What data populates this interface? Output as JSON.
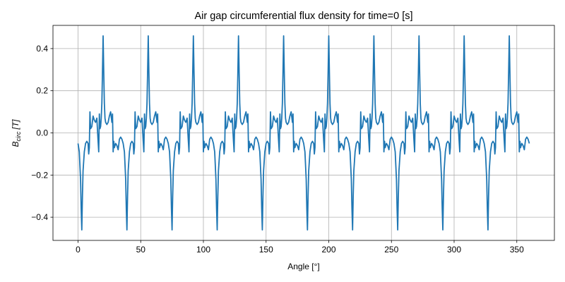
{
  "chart_data": {
    "type": "line",
    "title": "Air gap circumferential flux density for time=0 [s]",
    "xlabel": "Angle [°]",
    "ylabel": {
      "base": "B",
      "subscript": "circ",
      "unit": "[T]"
    },
    "xlim": [
      -20,
      380
    ],
    "ylim": [
      -0.51,
      0.51
    ],
    "xticks": [
      0,
      50,
      100,
      150,
      200,
      250,
      300,
      350
    ],
    "yticks": [
      -0.4,
      -0.2,
      0.0,
      0.2,
      0.4
    ],
    "xtick_labels": [
      "0",
      "50",
      "100",
      "150",
      "200",
      "250",
      "300",
      "350"
    ],
    "ytick_labels": [
      "−0.4",
      "−0.2",
      "0.0",
      "0.2",
      "0.4"
    ],
    "grid": true,
    "line_color": "#1f77b4",
    "period_deg": 36,
    "series": [
      {
        "x": [
          0,
          1,
          2,
          2.5,
          3,
          3.5,
          4,
          5,
          6,
          7,
          8,
          8.5,
          9,
          9.5,
          10,
          11,
          12,
          13,
          14,
          15,
          16,
          16.5,
          17,
          17.5,
          18,
          18.5,
          19,
          19.5,
          20,
          20.5,
          21,
          21.5,
          22,
          23,
          24,
          25,
          26,
          27,
          27.5,
          28,
          28.5,
          29,
          30,
          31,
          32,
          33,
          34,
          35,
          36
        ],
        "y": [
          -0.05,
          -0.09,
          -0.22,
          -0.36,
          -0.46,
          -0.3,
          -0.18,
          -0.09,
          -0.05,
          -0.04,
          -0.05,
          -0.1,
          -0.07,
          0.1,
          0.02,
          0.03,
          0.08,
          0.06,
          0.05,
          0.07,
          -0.04,
          -0.09,
          0.09,
          0.02,
          0.03,
          0.07,
          0.14,
          0.29,
          0.46,
          0.29,
          0.14,
          0.07,
          0.05,
          0.04,
          0.05,
          0.08,
          0.1,
          0.05,
          0.09,
          -0.09,
          -0.04,
          -0.07,
          -0.05,
          -0.06,
          -0.08,
          -0.03,
          -0.02,
          -0.03,
          -0.05
        ]
      }
    ],
    "x_end": 360
  }
}
